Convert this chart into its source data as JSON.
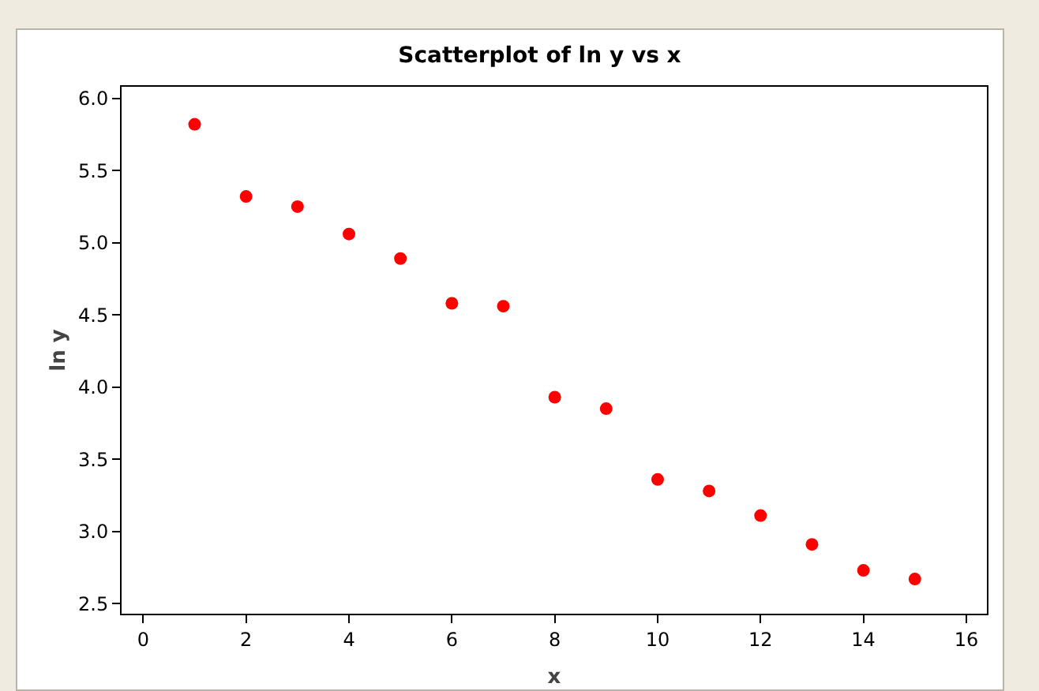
{
  "chart_data": {
    "type": "scatter",
    "title": "Scatterplot of ln y vs x",
    "xlabel": "x",
    "ylabel": "ln y",
    "x": [
      1,
      2,
      3,
      4,
      5,
      6,
      7,
      8,
      9,
      10,
      11,
      12,
      13,
      14,
      15
    ],
    "series": [
      {
        "color": "#ff0000",
        "values": [
          5.82,
          5.32,
          5.25,
          5.06,
          4.89,
          4.58,
          4.56,
          3.93,
          3.85,
          3.36,
          3.28,
          3.11,
          2.91,
          2.73,
          2.67
        ]
      }
    ],
    "xlim": [
      -0.42,
      16.4
    ],
    "xticks": [
      0,
      2,
      4,
      6,
      8,
      10,
      12,
      14,
      16
    ],
    "ylim": [
      2.43,
      6.08
    ],
    "yticks": [
      2.5,
      {
        "value": 3,
        "label": "3.0"
      },
      3.5,
      {
        "value": 4,
        "label": "4.0"
      },
      4.5,
      {
        "value": 5,
        "label": "5.0"
      },
      5.5,
      {
        "value": 6,
        "label": "6.0"
      }
    ],
    "grid": false,
    "legend": false,
    "marker": "circle"
  }
}
